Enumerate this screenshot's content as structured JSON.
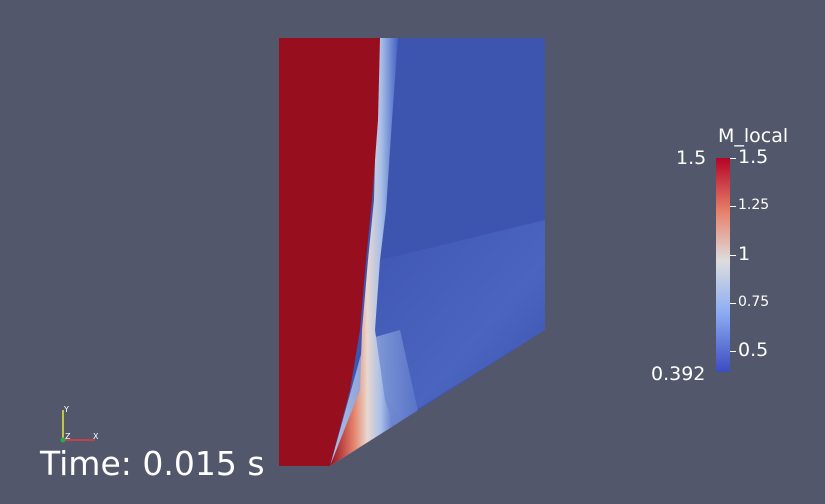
{
  "colorbar": {
    "title": "M_local",
    "range_min_label": "0.392",
    "range_max_label": "1.5",
    "ticks": [
      "1.5",
      "1.25",
      "1",
      "0.75",
      "0.5"
    ],
    "min_value": 0.392,
    "max_value": 1.5,
    "tick_values": [
      1.5,
      1.25,
      1.0,
      0.75,
      0.5
    ],
    "colormap": "Cool to Warm",
    "colors": {
      "low": "#3b4cc0",
      "mid": "#dddddd",
      "high": "#b40426"
    }
  },
  "annotation": {
    "time_text": "Time: 0.015 s"
  },
  "orientation_axes": {
    "x_label": "X",
    "y_label": "Y",
    "z_label": "Z",
    "colors": {
      "x": "#e83a3a",
      "y": "#e8e83a",
      "z": "#2ea84a"
    }
  },
  "render": {
    "background": "#52576b",
    "supersonic_color": "#970e1f",
    "subsonic_color": "#3e55b0"
  }
}
